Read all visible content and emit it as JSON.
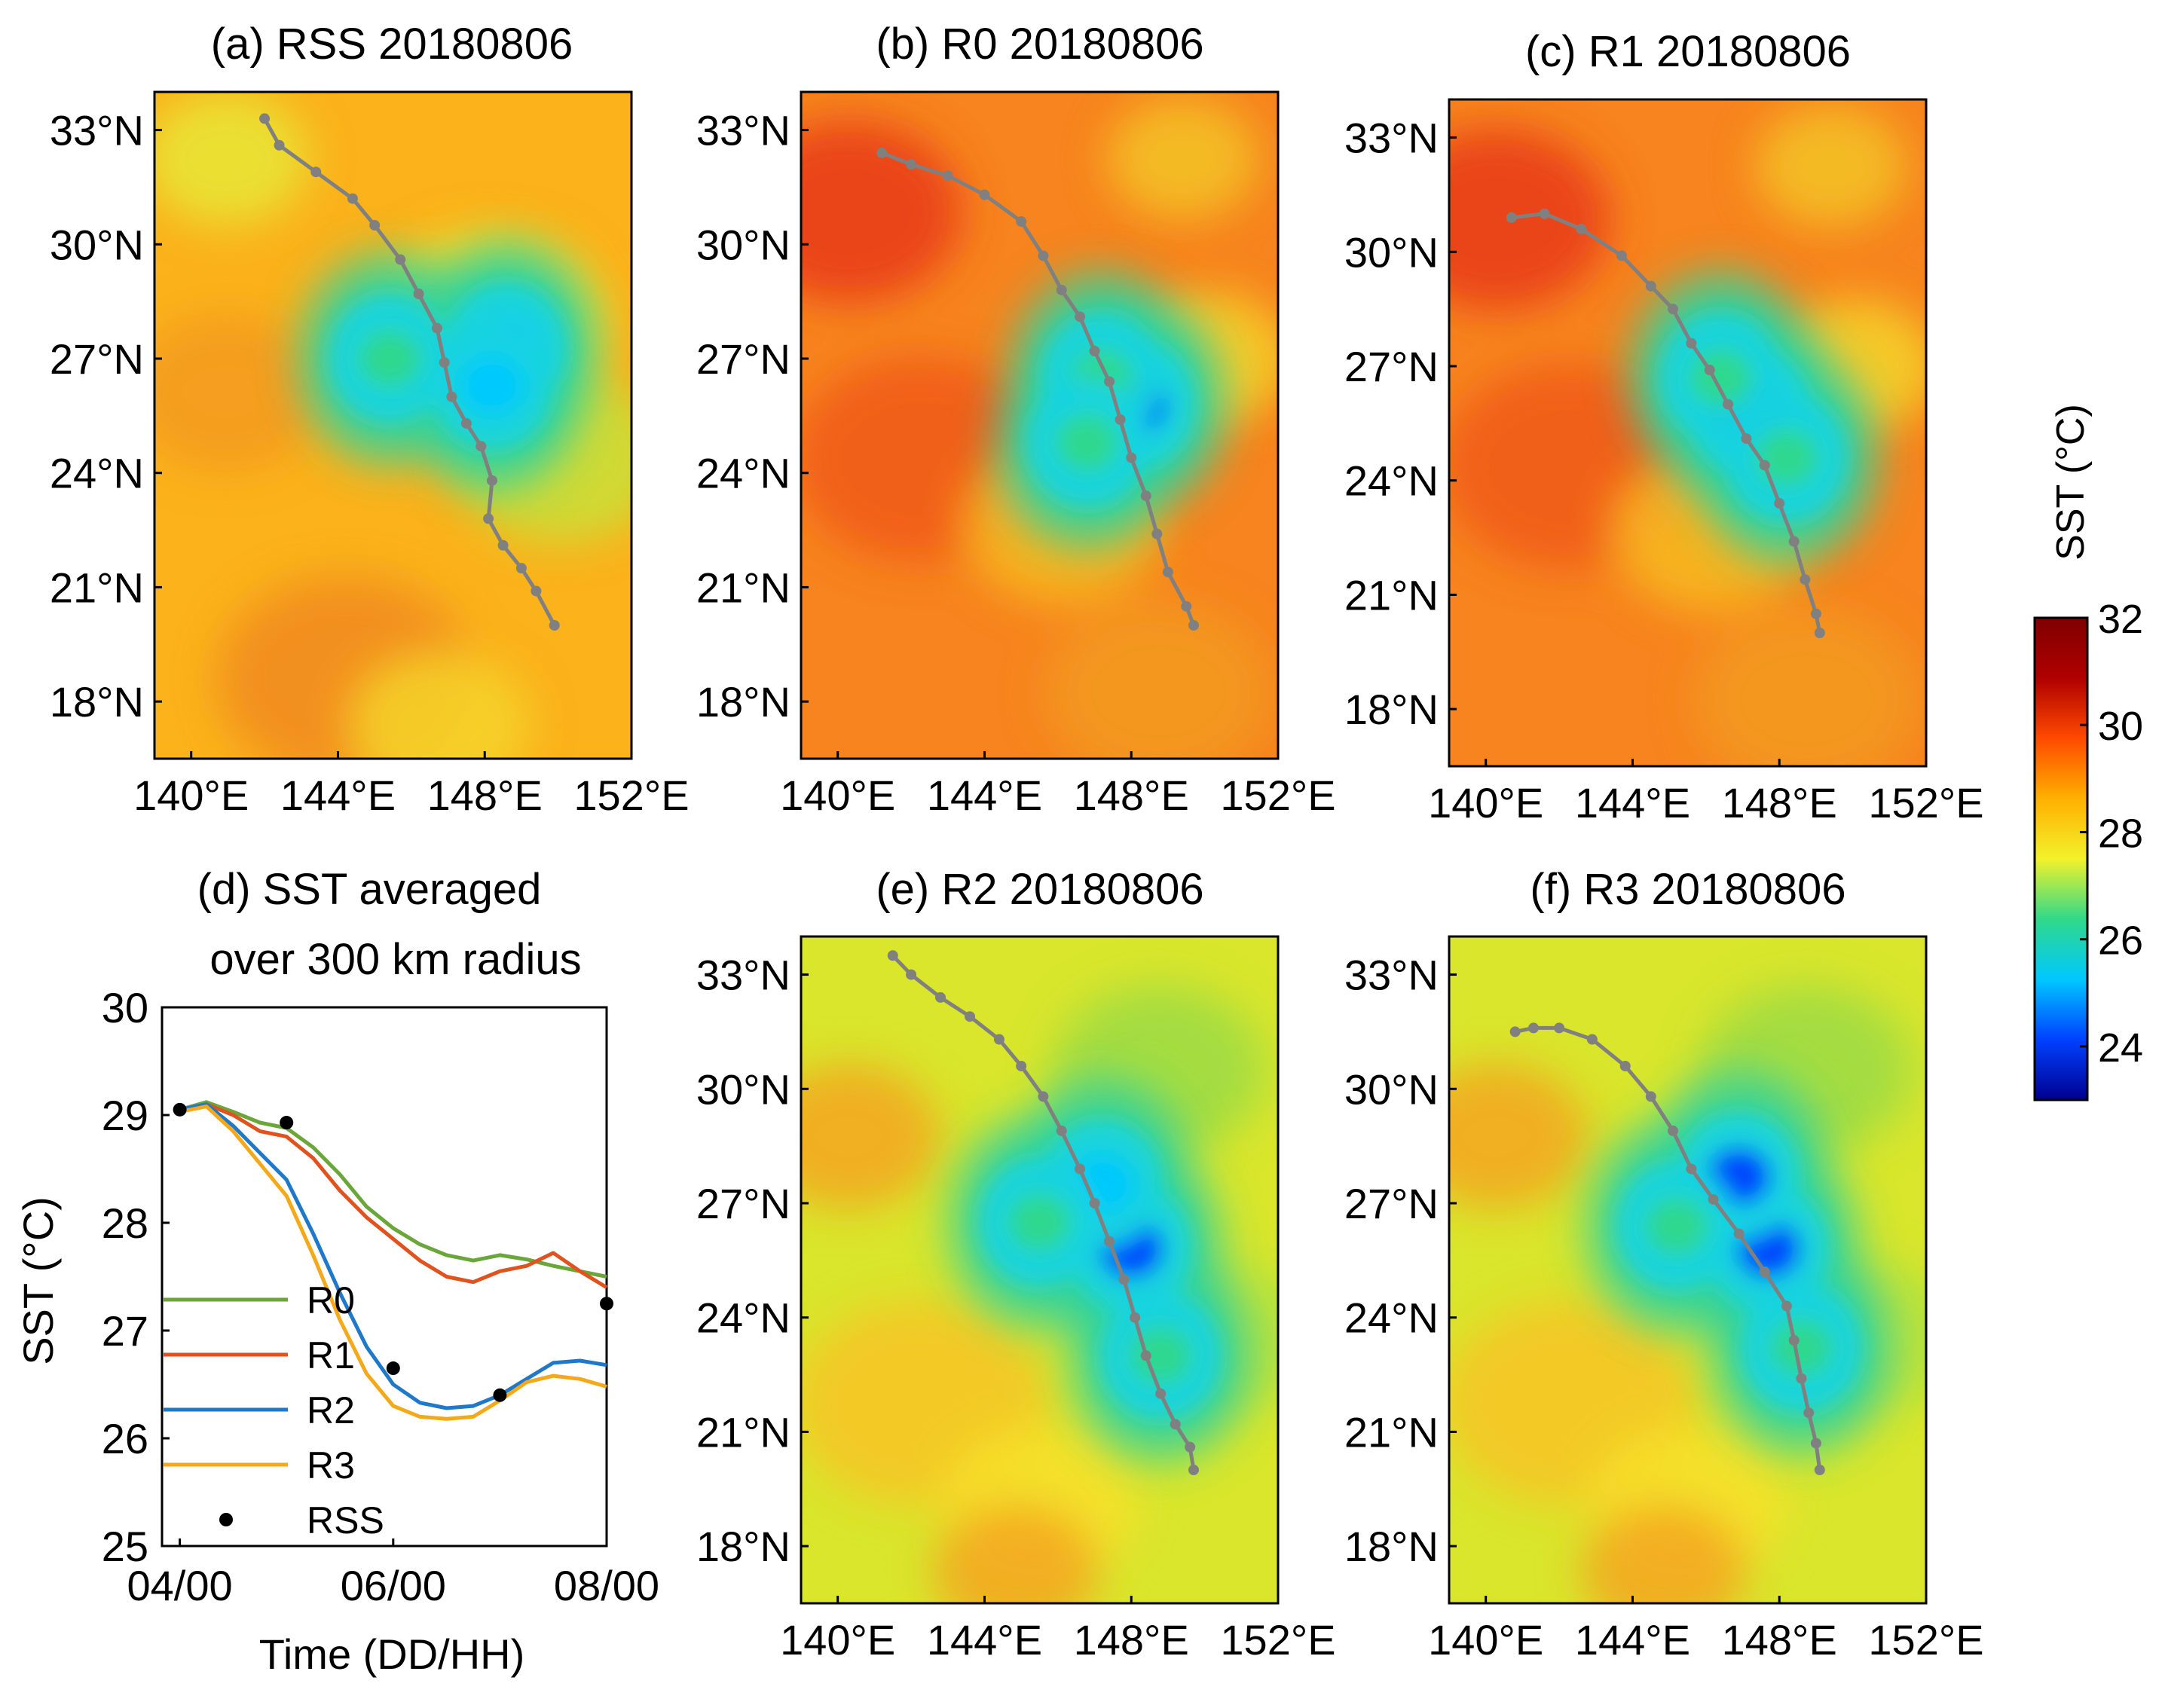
{
  "colors": {
    "R0": "#6aa63a",
    "R1": "#e0531f",
    "R2": "#1f78c8",
    "R3": "#f4a91a",
    "RSS": "#000000",
    "track": "#808080",
    "colormap": [
      "#00008f",
      "#0040ff",
      "#00c8ff",
      "#30d98a",
      "#f2f22a",
      "#ffb000",
      "#ff4a00",
      "#b00000",
      "#800000"
    ]
  },
  "colorbar": {
    "label": "SST (°C)",
    "ticks": [
      "32",
      "30",
      "28",
      "26",
      "24"
    ],
    "range": [
      23,
      32
    ]
  },
  "maps": [
    {
      "id": "a",
      "title": "(a) RSS 20180806",
      "lat_ticks": [
        "33°N",
        "30°N",
        "27°N",
        "24°N",
        "21°N",
        "18°N"
      ],
      "lon_ticks": [
        "140°E",
        "144°E",
        "148°E",
        "152°E"
      ],
      "lon_range": [
        139,
        152
      ],
      "lat_range": [
        16.5,
        34
      ],
      "background": "orange-yellow",
      "track": [
        [
          142.0,
          33.3
        ],
        [
          142.4,
          32.6
        ],
        [
          143.4,
          31.9
        ],
        [
          144.4,
          31.2
        ],
        [
          145.0,
          30.5
        ],
        [
          145.7,
          29.6
        ],
        [
          146.2,
          28.7
        ],
        [
          146.7,
          27.8
        ],
        [
          146.9,
          26.9
        ],
        [
          147.1,
          26.0
        ],
        [
          147.5,
          25.3
        ],
        [
          147.9,
          24.7
        ],
        [
          148.2,
          23.8
        ],
        [
          148.1,
          22.8
        ],
        [
          148.5,
          22.1
        ],
        [
          149.0,
          21.5
        ],
        [
          149.4,
          20.9
        ],
        [
          149.9,
          20.0
        ]
      ],
      "cold_pools": [
        {
          "lon": 148.6,
          "lat": 27.3,
          "sst": 24.8
        },
        {
          "lon": 148.2,
          "lat": 26.3,
          "sst": 25.5
        },
        {
          "lon": 145.4,
          "lat": 27.0,
          "sst": 26.7
        }
      ]
    },
    {
      "id": "b",
      "title": "(b) R0 20180806",
      "lat_ticks": [
        "33°N",
        "30°N",
        "27°N",
        "24°N",
        "21°N",
        "18°N"
      ],
      "lon_ticks": [
        "140°E",
        "144°E",
        "148°E",
        "152°E"
      ],
      "lon_range": [
        139,
        152
      ],
      "lat_range": [
        16.5,
        34
      ],
      "background": "red-orange",
      "track": [
        [
          141.2,
          32.4
        ],
        [
          142.0,
          32.1
        ],
        [
          143.0,
          31.8
        ],
        [
          144.0,
          31.3
        ],
        [
          145.0,
          30.6
        ],
        [
          145.6,
          29.7
        ],
        [
          146.1,
          28.8
        ],
        [
          146.6,
          28.1
        ],
        [
          147.0,
          27.2
        ],
        [
          147.4,
          26.4
        ],
        [
          147.7,
          25.4
        ],
        [
          148.0,
          24.4
        ],
        [
          148.4,
          23.4
        ],
        [
          148.7,
          22.4
        ],
        [
          149.0,
          21.4
        ],
        [
          149.5,
          20.5
        ],
        [
          149.7,
          20.0
        ]
      ],
      "cold_pools": [
        {
          "lon": 148.1,
          "lat": 25.8,
          "sst": 24.3
        },
        {
          "lon": 147.2,
          "lat": 26.5,
          "sst": 26.0
        },
        {
          "lon": 146.8,
          "lat": 24.8,
          "sst": 26.8
        }
      ]
    },
    {
      "id": "c",
      "title": "(c) R1 20180806",
      "lat_ticks": [
        "33°N",
        "30°N",
        "27°N",
        "24°N",
        "21°N",
        "18°N"
      ],
      "lon_ticks": [
        "140°E",
        "144°E",
        "148°E",
        "152°E"
      ],
      "lon_range": [
        139,
        152
      ],
      "lat_range": [
        16.5,
        34
      ],
      "background": "red-orange",
      "track": [
        [
          140.7,
          30.9
        ],
        [
          141.6,
          31.0
        ],
        [
          142.6,
          30.6
        ],
        [
          143.7,
          29.9
        ],
        [
          144.5,
          29.1
        ],
        [
          145.1,
          28.5
        ],
        [
          145.6,
          27.6
        ],
        [
          146.1,
          26.9
        ],
        [
          146.6,
          26.0
        ],
        [
          147.1,
          25.1
        ],
        [
          147.6,
          24.4
        ],
        [
          148.0,
          23.4
        ],
        [
          148.4,
          22.4
        ],
        [
          148.7,
          21.4
        ],
        [
          149.0,
          20.5
        ],
        [
          149.1,
          20.0
        ]
      ],
      "cold_pools": [
        {
          "lon": 147.2,
          "lat": 25.8,
          "sst": 24.5
        },
        {
          "lon": 146.4,
          "lat": 26.7,
          "sst": 26.2
        },
        {
          "lon": 148.2,
          "lat": 24.6,
          "sst": 26.9
        }
      ]
    },
    {
      "id": "e",
      "title": "(e) R2 20180806",
      "lat_ticks": [
        "33°N",
        "30°N",
        "27°N",
        "24°N",
        "21°N",
        "18°N"
      ],
      "lon_ticks": [
        "140°E",
        "144°E",
        "148°E",
        "152°E"
      ],
      "lon_range": [
        139,
        152
      ],
      "lat_range": [
        16.5,
        34
      ],
      "background": "yellow-green",
      "track": [
        [
          141.5,
          33.5
        ],
        [
          142.0,
          33.0
        ],
        [
          142.8,
          32.4
        ],
        [
          143.6,
          31.9
        ],
        [
          144.4,
          31.3
        ],
        [
          145.0,
          30.6
        ],
        [
          145.6,
          29.8
        ],
        [
          146.1,
          28.9
        ],
        [
          146.6,
          27.9
        ],
        [
          147.0,
          27.0
        ],
        [
          147.4,
          26.0
        ],
        [
          147.8,
          25.0
        ],
        [
          148.1,
          24.0
        ],
        [
          148.4,
          23.0
        ],
        [
          148.8,
          22.0
        ],
        [
          149.2,
          21.2
        ],
        [
          149.6,
          20.6
        ],
        [
          149.7,
          20.0
        ]
      ],
      "cold_pools": [
        {
          "lon": 148.0,
          "lat": 25.8,
          "sst": 24.0
        },
        {
          "lon": 147.2,
          "lat": 27.5,
          "sst": 24.8
        },
        {
          "lon": 145.5,
          "lat": 26.5,
          "sst": 26.4
        },
        {
          "lon": 148.8,
          "lat": 23.0,
          "sst": 26.9
        }
      ]
    },
    {
      "id": "f",
      "title": "(f) R3 20180806",
      "lat_ticks": [
        "33°N",
        "30°N",
        "27°N",
        "24°N",
        "21°N",
        "18°N"
      ],
      "lon_ticks": [
        "140°E",
        "144°E",
        "148°E",
        "152°E"
      ],
      "lon_range": [
        139,
        152
      ],
      "lat_range": [
        16.5,
        34
      ],
      "background": "yellow-green",
      "track": [
        [
          140.8,
          31.5
        ],
        [
          141.3,
          31.6
        ],
        [
          142.0,
          31.6
        ],
        [
          142.9,
          31.3
        ],
        [
          143.8,
          30.6
        ],
        [
          144.5,
          29.8
        ],
        [
          145.1,
          28.9
        ],
        [
          145.6,
          27.9
        ],
        [
          146.2,
          27.1
        ],
        [
          146.9,
          26.2
        ],
        [
          147.6,
          25.2
        ],
        [
          148.2,
          24.3
        ],
        [
          148.4,
          23.4
        ],
        [
          148.6,
          22.4
        ],
        [
          148.8,
          21.5
        ],
        [
          149.0,
          20.7
        ],
        [
          149.1,
          20.0
        ]
      ],
      "cold_pools": [
        {
          "lon": 147.7,
          "lat": 25.8,
          "sst": 23.9
        },
        {
          "lon": 146.9,
          "lat": 27.7,
          "sst": 24.6
        },
        {
          "lon": 145.2,
          "lat": 26.4,
          "sst": 26.3
        },
        {
          "lon": 148.6,
          "lat": 23.2,
          "sst": 26.9
        }
      ]
    }
  ],
  "chart_data": {
    "type": "line",
    "title_line1": "(d) SST averaged",
    "title_line2": "over 300 km radius",
    "xlabel": "Time (DD/HH)",
    "ylabel": "SST (°C)",
    "x_ticks": [
      "04/00",
      "06/00",
      "08/00"
    ],
    "x_tick_values": [
      0,
      48,
      96
    ],
    "y_ticks": [
      "30",
      "29",
      "28",
      "27",
      "26",
      "25"
    ],
    "y_tick_values": [
      30,
      29,
      28,
      27,
      26,
      25
    ],
    "xlim": [
      -4,
      96
    ],
    "ylim": [
      25,
      30
    ],
    "x": [
      0,
      6,
      12,
      18,
      24,
      30,
      36,
      42,
      48,
      54,
      60,
      66,
      72,
      78,
      84,
      90,
      96
    ],
    "series": [
      {
        "name": "R0",
        "values": [
          29.05,
          29.12,
          29.03,
          28.93,
          28.88,
          28.7,
          28.45,
          28.15,
          27.95,
          27.8,
          27.7,
          27.65,
          27.7,
          27.66,
          27.6,
          27.55,
          27.5
        ]
      },
      {
        "name": "R1",
        "values": [
          29.05,
          29.1,
          29.0,
          28.85,
          28.8,
          28.6,
          28.3,
          28.05,
          27.85,
          27.65,
          27.5,
          27.45,
          27.55,
          27.6,
          27.72,
          27.55,
          27.4
        ]
      },
      {
        "name": "R2",
        "values": [
          29.05,
          29.1,
          28.9,
          28.65,
          28.4,
          27.9,
          27.35,
          26.85,
          26.5,
          26.33,
          26.28,
          26.3,
          26.4,
          26.55,
          26.7,
          26.72,
          26.68
        ]
      },
      {
        "name": "R3",
        "values": [
          29.03,
          29.08,
          28.85,
          28.55,
          28.25,
          27.7,
          27.1,
          26.6,
          26.3,
          26.2,
          26.18,
          26.2,
          26.35,
          26.52,
          26.58,
          26.55,
          26.48
        ]
      }
    ],
    "rss": {
      "name": "RSS",
      "x": [
        0,
        24,
        48,
        72,
        96
      ],
      "values": [
        29.05,
        28.93,
        26.65,
        26.4,
        27.25
      ]
    },
    "legend_location": "lower-left"
  }
}
